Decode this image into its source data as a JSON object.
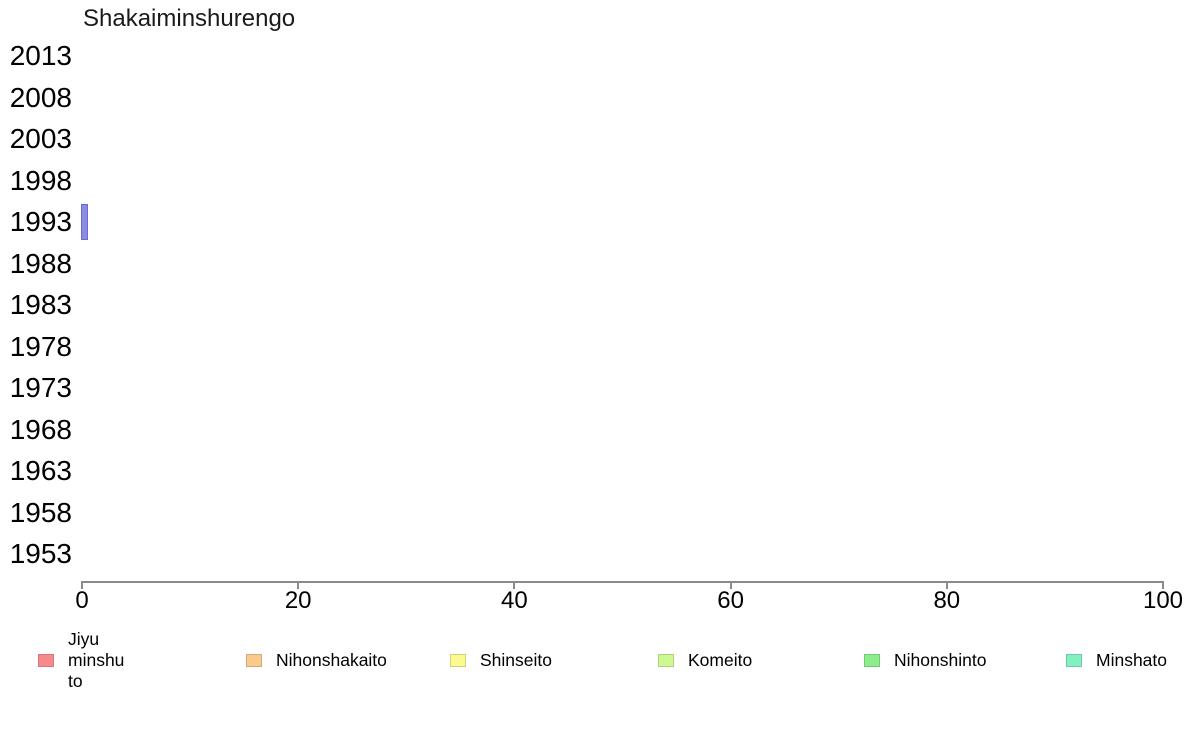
{
  "chart_data": {
    "type": "bar",
    "orientation": "horizontal",
    "title": "Shakaiminshurengo",
    "categories": [
      "2013",
      "2008",
      "2003",
      "1998",
      "1993",
      "1988",
      "1983",
      "1978",
      "1973",
      "1968",
      "1963",
      "1958",
      "1953"
    ],
    "values": [
      0,
      0,
      0,
      0,
      0.65,
      0,
      0,
      0,
      0,
      0,
      0,
      0,
      0
    ],
    "xlabel": "",
    "ylabel": "",
    "xlim": [
      0,
      100
    ],
    "x_ticks": [
      0,
      20,
      40,
      60,
      80,
      100
    ],
    "grid": false,
    "legend_position": "bottom",
    "bar_style": {
      "fill": "#8b8be4",
      "border": "#6a6ad0"
    },
    "axis_color": "#8a8a8a",
    "legend": [
      {
        "label": "Jiyu minshu to",
        "color": "#f8898b",
        "border": "#cf7a7c"
      },
      {
        "label": "Nihonshakaito",
        "color": "#fcc98c",
        "border": "#d3ab79"
      },
      {
        "label": "Shinseito",
        "color": "#fafa90",
        "border": "#d2d27c"
      },
      {
        "label": "Komeito",
        "color": "#cdf892",
        "border": "#add17e"
      },
      {
        "label": "Nihonshinto",
        "color": "#8bee8b",
        "border": "#76c876"
      },
      {
        "label": "Minshato",
        "color": "#83f0c0",
        "border": "#6fcaa3"
      }
    ]
  }
}
